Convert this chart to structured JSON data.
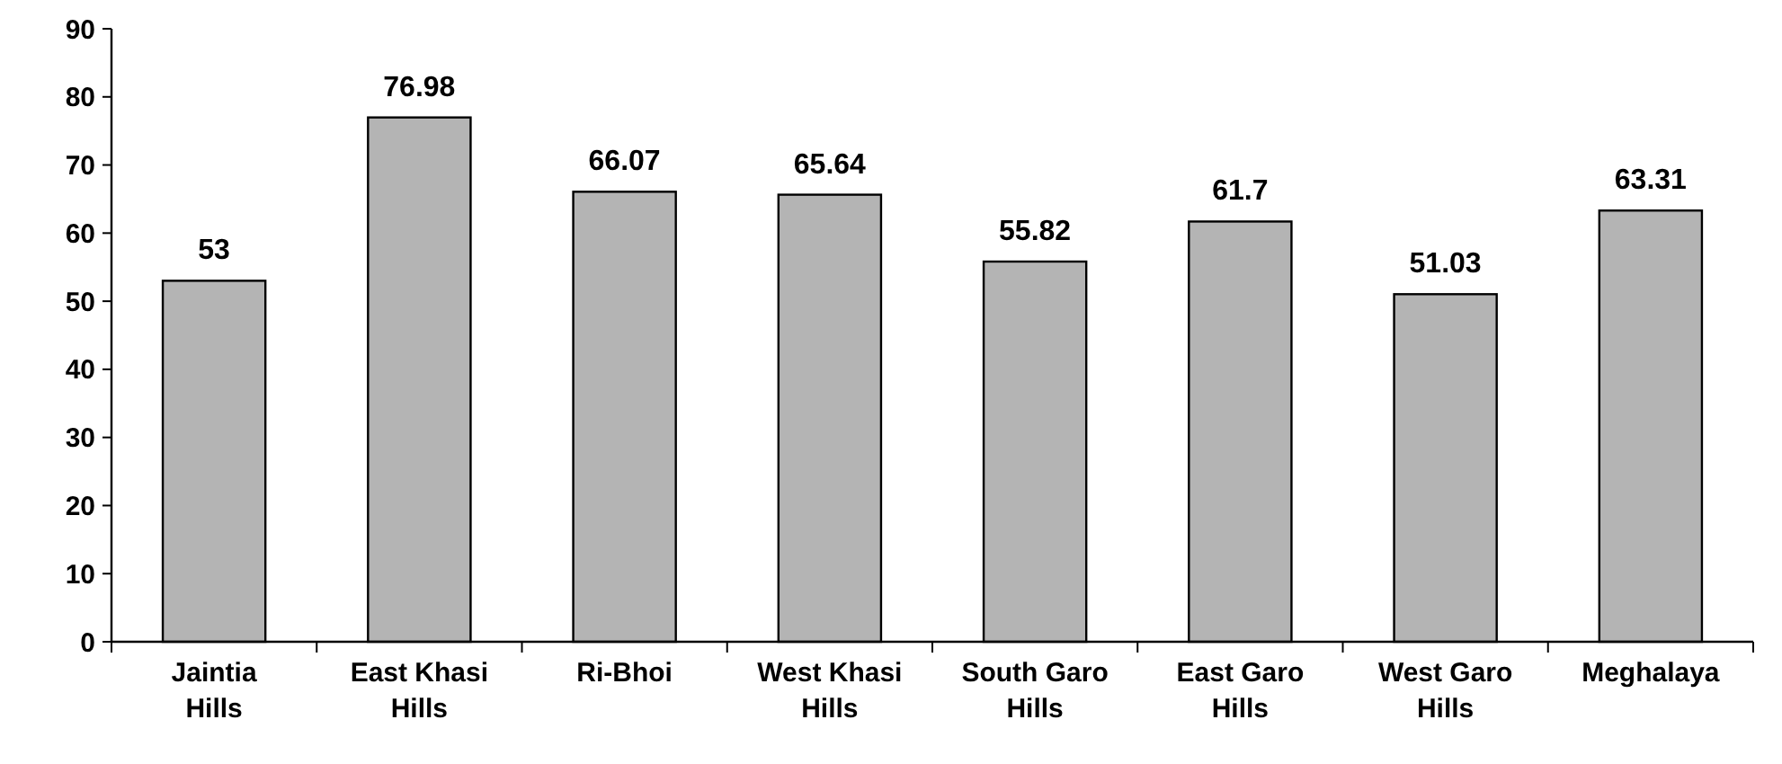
{
  "chart_data": {
    "type": "bar",
    "categories": [
      "Jaintia Hills",
      "East Khasi Hills",
      "Ri-Bhoi",
      "West Khasi Hills",
      "South Garo Hills",
      "East Garo Hills",
      "West Garo Hills",
      "Meghalaya"
    ],
    "values": [
      53,
      76.98,
      66.07,
      65.64,
      55.82,
      61.7,
      51.03,
      63.31
    ],
    "color": "#b4b4b4",
    "ylim": [
      0,
      90
    ],
    "yticks": [
      0,
      10,
      20,
      30,
      40,
      50,
      60,
      70,
      80,
      90
    ],
    "grid": false,
    "data_labels": true
  }
}
